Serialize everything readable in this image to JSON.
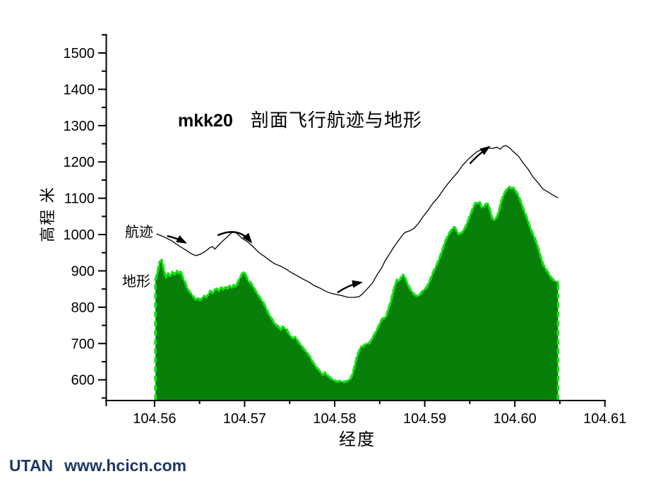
{
  "watermark": {
    "brand": "UTAN",
    "url": "www.hcicn.com",
    "color": "#1f3864"
  },
  "chart_data": {
    "type": "area+line",
    "title_code": "mkk20",
    "title": "剖面飞行航迹与地形",
    "xlabel": "经度",
    "ylabel": "高程 米",
    "xlim": [
      104.5546,
      104.6101
    ],
    "ylim": [
      550,
      1550
    ],
    "grid": false,
    "legend_position": "none",
    "x_major_ticks": [
      104.56,
      104.57,
      104.58,
      104.59,
      104.6,
      104.61
    ],
    "x_tick_labels": [
      "104.56",
      "104.57",
      "104.58",
      "104.59",
      "104.60",
      "104.61"
    ],
    "x_minor_ticks": [
      104.565,
      104.575,
      104.585,
      104.595,
      104.605
    ],
    "y_major_ticks": [
      600,
      700,
      800,
      900,
      1000,
      1100,
      1200,
      1300,
      1400,
      1500
    ],
    "y_minor_ticks": [
      550,
      650,
      750,
      850,
      950,
      1050,
      1150,
      1250,
      1350,
      1450,
      1550
    ],
    "series": [
      {
        "name": "地形",
        "type": "area",
        "fill": "#087f08",
        "outline": "#15e115",
        "lon_start": 104.5601,
        "lon_end": 104.6048,
        "elevations": [
          875,
          898,
          925,
          930,
          902,
          882,
          893,
          886,
          897,
          890,
          900,
          893,
          899,
          880,
          868,
          852,
          843,
          836,
          828,
          821,
          826,
          819,
          825,
          831,
          827,
          836,
          845,
          839,
          848,
          851,
          845,
          854,
          849,
          857,
          851,
          859,
          854,
          861,
          856,
          871,
          882,
          893,
          897,
          884,
          871,
          867,
          858,
          848,
          838,
          829,
          820,
          812,
          800,
          787,
          775,
          768,
          757,
          751,
          747,
          737,
          746,
          742,
          738,
          727,
          719,
          714,
          718,
          709,
          700,
          694,
          685,
          679,
          671,
          663,
          651,
          643,
          634,
          628,
          620,
          614,
          620,
          613,
          608,
          603,
          600,
          597,
          595,
          597,
          595,
          594,
          596,
          598,
          603,
          615,
          638,
          662,
          678,
          691,
          692,
          698,
          699,
          702,
          711,
          722,
          732,
          744,
          756,
          768,
          770,
          776,
          797,
          813,
          838,
          860,
          875,
          872,
          882,
          889,
          879,
          863,
          852,
          843,
          836,
          832,
          830,
          836,
          844,
          849,
          855,
          866,
          880,
          895,
          907,
          920,
          935,
          950,
          968,
          984,
          996,
          1007,
          1015,
          1021,
          1013,
          1001,
          1003,
          1008,
          1017,
          1030,
          1045,
          1060,
          1075,
          1087,
          1086,
          1090,
          1075,
          1076,
          1085,
          1084,
          1065,
          1044,
          1040,
          1047,
          1063,
          1087,
          1105,
          1117,
          1126,
          1131,
          1127,
          1129,
          1120,
          1110,
          1097,
          1081,
          1065,
          1050,
          1034,
          1016,
          1003,
          990,
          974,
          956,
          935,
          917,
          907,
          898,
          888,
          880,
          874,
          871,
          868
        ]
      },
      {
        "name": "航迹",
        "type": "line",
        "color": "#000000",
        "points": [
          [
            104.5602,
            1002
          ],
          [
            104.561,
            994
          ],
          [
            104.5619,
            983
          ],
          [
            104.5627,
            969
          ],
          [
            104.5635,
            957
          ],
          [
            104.5641,
            947
          ],
          [
            104.5646,
            942
          ],
          [
            104.5651,
            946
          ],
          [
            104.5656,
            953
          ],
          [
            104.5661,
            963
          ],
          [
            104.5664,
            967
          ],
          [
            104.5667,
            960
          ],
          [
            104.5671,
            971
          ],
          [
            104.5676,
            983
          ],
          [
            104.5681,
            994
          ],
          [
            104.5685,
            1004
          ],
          [
            104.5688,
            1008
          ],
          [
            104.5692,
            1002
          ],
          [
            104.5697,
            990
          ],
          [
            104.5704,
            979
          ],
          [
            104.571,
            965
          ],
          [
            104.5716,
            950
          ],
          [
            104.5722,
            940
          ],
          [
            104.5727,
            930
          ],
          [
            104.5733,
            920
          ],
          [
            104.574,
            913
          ],
          [
            104.5746,
            905
          ],
          [
            104.5752,
            895
          ],
          [
            104.5758,
            887
          ],
          [
            104.5765,
            877
          ],
          [
            104.5771,
            870
          ],
          [
            104.5777,
            860
          ],
          [
            104.5784,
            852
          ],
          [
            104.579,
            844
          ],
          [
            104.5796,
            838
          ],
          [
            104.5802,
            835
          ],
          [
            104.5809,
            831
          ],
          [
            104.5815,
            827
          ],
          [
            104.5821,
            827
          ],
          [
            104.5827,
            829
          ],
          [
            104.5831,
            837
          ],
          [
            104.5836,
            850
          ],
          [
            104.5842,
            867
          ],
          [
            104.5847,
            889
          ],
          [
            104.5852,
            908
          ],
          [
            104.5856,
            928
          ],
          [
            104.5861,
            947
          ],
          [
            104.5866,
            967
          ],
          [
            104.5871,
            984
          ],
          [
            104.5875,
            998
          ],
          [
            104.5878,
            1006
          ],
          [
            104.5883,
            1010
          ],
          [
            104.5888,
            1017
          ],
          [
            104.5893,
            1031
          ],
          [
            104.5898,
            1049
          ],
          [
            104.5904,
            1068
          ],
          [
            104.5909,
            1086
          ],
          [
            104.5915,
            1103
          ],
          [
            104.592,
            1121
          ],
          [
            104.5925,
            1138
          ],
          [
            104.5931,
            1156
          ],
          [
            104.5937,
            1173
          ],
          [
            104.5942,
            1191
          ],
          [
            104.5947,
            1204
          ],
          [
            104.5953,
            1218
          ],
          [
            104.5958,
            1228
          ],
          [
            104.5964,
            1235
          ],
          [
            104.5969,
            1239
          ],
          [
            104.5975,
            1237
          ],
          [
            104.598,
            1241
          ],
          [
            104.5984,
            1235
          ],
          [
            104.5987,
            1243
          ],
          [
            104.599,
            1245
          ],
          [
            104.5994,
            1239
          ],
          [
            104.5998,
            1229
          ],
          [
            104.6004,
            1216
          ],
          [
            104.6009,
            1198
          ],
          [
            104.6015,
            1179
          ],
          [
            104.602,
            1159
          ],
          [
            104.6026,
            1142
          ],
          [
            104.6031,
            1126
          ],
          [
            104.6037,
            1117
          ],
          [
            104.6042,
            1109
          ],
          [
            104.6048,
            1101
          ]
        ]
      }
    ],
    "annotations": {
      "track_label": {
        "text": "航迹",
        "lon": 104.5568,
        "elev": 1016
      },
      "terrain_label": {
        "text": "地形",
        "lon": 104.5564,
        "elev": 878
      },
      "arrows": [
        {
          "tail": [
            104.5614,
            996
          ],
          "ctrl": [
            104.5624,
            991
          ],
          "tip": [
            104.5634,
            978
          ]
        },
        {
          "tail": [
            104.567,
            998
          ],
          "ctrl": [
            104.5693,
            1023
          ],
          "tip": [
            104.5707,
            980
          ]
        },
        {
          "tail": [
            104.5803,
            840
          ],
          "ctrl": [
            104.5816,
            862
          ],
          "tip": [
            104.5829,
            868
          ]
        },
        {
          "tail": [
            104.595,
            1195
          ],
          "ctrl": [
            104.5959,
            1220
          ],
          "tip": [
            104.5971,
            1241
          ]
        }
      ]
    }
  }
}
